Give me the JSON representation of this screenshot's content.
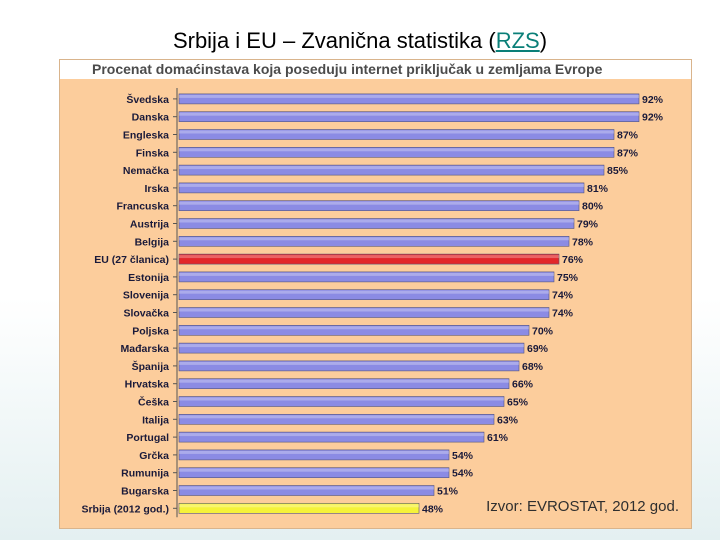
{
  "slide": {
    "title_prefix": "Srbija i EU – Zvanična statistika (",
    "title_link": "RZS",
    "title_suffix": ")"
  },
  "colors": {
    "background": "#fccd9c",
    "bar_default": "#8b8be4",
    "bar_eu": "#e2272a",
    "bar_serbia": "#f5f23a",
    "label_text": "#1a1a3a"
  },
  "source_note": "Izvor: EVROSTAT, 2012 god.",
  "chart_data": {
    "type": "bar",
    "orientation": "horizontal",
    "title": "Procenat domaćinstava koja poseduju internet priključak u zemljama Evrope",
    "xlim": [
      0,
      100
    ],
    "unit": "%",
    "categories": [
      "Švedska",
      "Danska",
      "Engleska",
      "Finska",
      "Nemačka",
      "Irska",
      "Francuska",
      "Austrija",
      "Belgija",
      "EU (27 članica)",
      "Estonija",
      "Slovenija",
      "Slovačka",
      "Poljska",
      "Mađarska",
      "Španija",
      "Hrvatska",
      "Češka",
      "Italija",
      "Portugal",
      "Grčka",
      "Rumunija",
      "Bugarska",
      "Srbija (2012 god.)"
    ],
    "values": [
      92,
      92,
      87,
      87,
      85,
      81,
      80,
      79,
      78,
      76,
      75,
      74,
      74,
      70,
      69,
      68,
      66,
      65,
      63,
      61,
      54,
      54,
      51,
      48
    ],
    "highlight": {
      "EU (27 članica)": "eu",
      "Srbija (2012 god.)": "serbia"
    }
  }
}
